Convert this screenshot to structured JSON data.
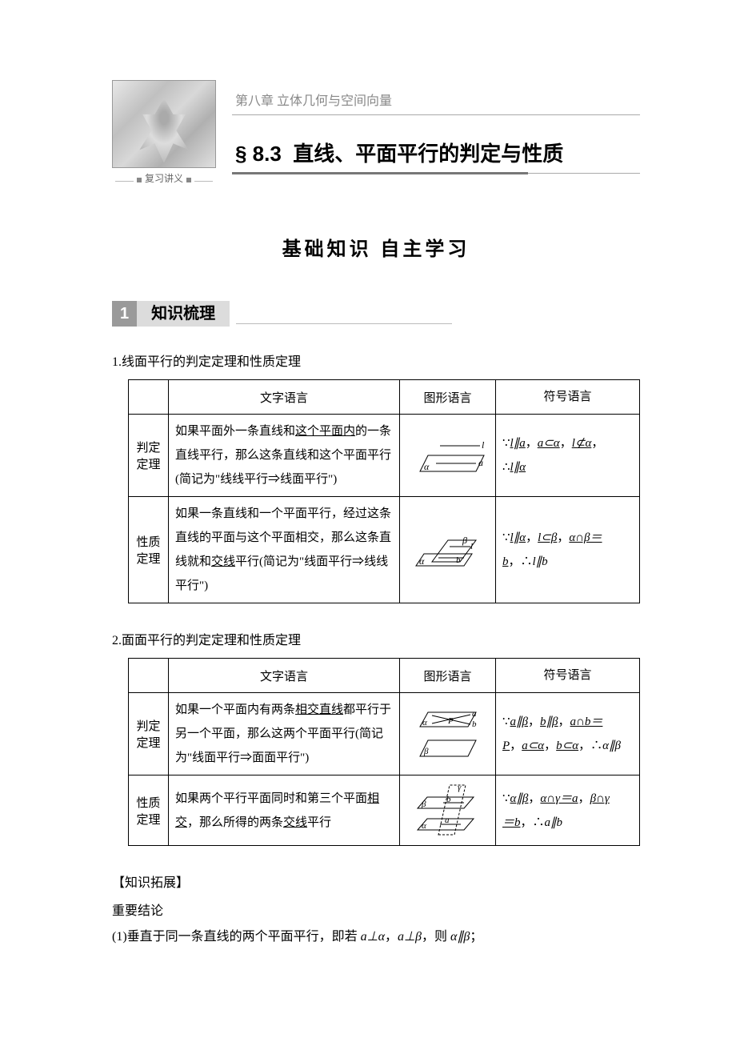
{
  "colors": {
    "text": "#000000",
    "gray_header_bg": "#9a9a9a",
    "gray_tab_bg": "#dcdcdc",
    "rule_gray": "#888888",
    "light_rule": "#aaaaaa",
    "table_border": "#000000"
  },
  "header": {
    "chapter_line": "第八章  立体几何与空间向量",
    "section_code": "§ 8.3",
    "section_title": "直线、平面平行的判定与性质",
    "image_caption": "复习讲义"
  },
  "main_heading": "基础知识    自主学习",
  "subsection": {
    "number": "1",
    "label": "知识梳理"
  },
  "table_headers": [
    "文字语言",
    "图形语言",
    "符号语言"
  ],
  "row_labels": {
    "judge": "判定定理",
    "prop": "性质定理"
  },
  "table1": {
    "heading": "1.线面平行的判定定理和性质定理",
    "rows": [
      {
        "text_pre": "如果平面外一条直线和",
        "text_u1": "这个平面内",
        "text_mid": "的一条直线平行，那么这条直线和这个平面平行(简记为\"线线平行⇒线面平行\")",
        "diagram": "t1r1",
        "symbol_html": "∵<span class='u mi'>l∥a</span>，<span class='u mi'>a⊂α</span>，<span class='u mi'>l⊄α</span>，<br>∴<span class='u mi'>l∥α</span>"
      },
      {
        "text_pre": "如果一条直线和一个平面平行，经过这条直线的平面与这个平面相交，那么这条直线就和",
        "text_u1": "交线",
        "text_mid": "平行(简记为\"线面平行⇒线线平行\")",
        "diagram": "t1r2",
        "symbol_html": "∵<span class='u mi'>l∥α</span>，<span class='u mi'>l⊂β</span>，<span class='u mi'>α∩β＝<br>b</span>，∴<span class='mi'>l∥b</span>"
      }
    ]
  },
  "table2": {
    "heading": "2.面面平行的判定定理和性质定理",
    "rows": [
      {
        "text_pre": "如果一个平面内有两条",
        "text_u1": "相交直线",
        "text_mid": "都平行于另一个平面，那么这两个平面平行(简记为\"线面平行⇒面面平行\")",
        "diagram": "t2r1",
        "symbol_html": "∵<span class='u mi'>a∥β</span>，<span class='u mi'>b∥β</span>，<span class='u mi'>a∩b＝<br>P</span>，<span class='u mi'>a⊂α</span>，<span class='u mi'>b⊂α</span>，∴<span class='mi'>α∥β</span>"
      },
      {
        "text_pre": "如果两个平行平面同时和第三个平面",
        "text_u1": "相交",
        "text_mid": "，那么所得的两条",
        "text_u2": "交线",
        "text_end": "平行",
        "diagram": "t2r2",
        "symbol_html": "∵<span class='u mi'>α∥β</span>，<span class='u mi'>α∩γ＝a</span>，<span class='u mi'>β∩γ<br>＝b</span>，∴<span class='mi'>a∥b</span>"
      }
    ]
  },
  "extension": {
    "title": "【知识拓展】",
    "subtitle": "重要结论",
    "line1_pre": "(1)垂直于同一条直线的两个平面平行，即若 ",
    "line1_math": "<span class='mi'>a⊥α</span>，<span class='mi'>a⊥β</span>，则 <span class='mi'>α∥β</span>；"
  },
  "diagrams": {
    "stroke": "#000000",
    "stroke_width": 1,
    "label_fontsize": 12,
    "label_font": "Times New Roman, serif",
    "label_style": "italic"
  }
}
